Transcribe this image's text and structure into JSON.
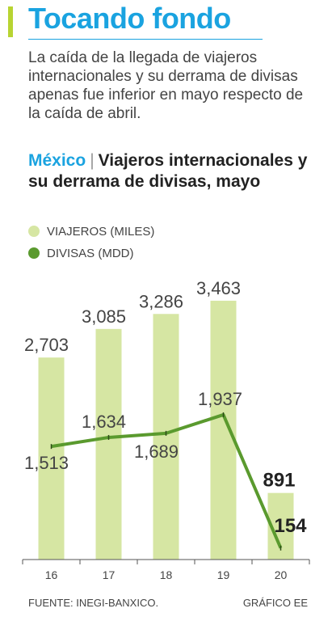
{
  "header": {
    "title": "Tocando fondo",
    "deck": "La caída de la llegada de viajeros internacionales y su derrama de divisas apenas fue inferior en mayo respecto de la caída de abril."
  },
  "chart_header": {
    "place": "México",
    "title": "Viajeros internacionales y su derrama de divisas, mayo"
  },
  "colors": {
    "accent": "#1aa3e0",
    "bar": "#d6e6a3",
    "line": "#5a9a2e",
    "side_bar": "#b8d432"
  },
  "chart_data": {
    "type": "bar",
    "categories": [
      "16",
      "17",
      "18",
      "19",
      "20"
    ],
    "series": [
      {
        "name": "VIAJEROS (MILES)",
        "type": "bar",
        "values": [
          2703,
          3085,
          3286,
          3463,
          891
        ],
        "labels": [
          "2,703",
          "3,085",
          "3,286",
          "3,463",
          "891"
        ]
      },
      {
        "name": "DIVISAS (MDD)",
        "type": "line",
        "values": [
          1513,
          1634,
          1689,
          1937,
          154
        ],
        "labels": [
          "1,513",
          "1,634",
          "1,689",
          "1,937",
          "154"
        ]
      }
    ],
    "ylim": [
      0,
      3700
    ],
    "grid": false,
    "legend": "top-left"
  },
  "footer": {
    "source": "FUENTE: INEGI-BANXICO.",
    "credit": "GRÁFICO EE"
  }
}
